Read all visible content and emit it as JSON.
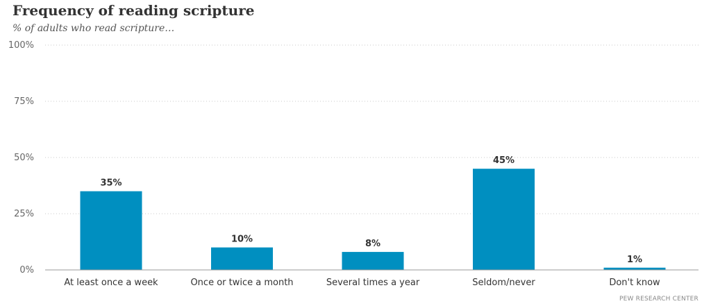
{
  "chart_data": {
    "type": "bar",
    "title": "Frequency of reading scripture",
    "subtitle": "% of adults who read scripture…",
    "categories": [
      "At least once a week",
      "Once or twice a month",
      "Several times a year",
      "Seldom/never",
      "Don't know"
    ],
    "values": [
      35,
      10,
      8,
      45,
      1
    ],
    "value_labels": [
      "35%",
      "10%",
      "8%",
      "45%",
      "1%"
    ],
    "ylim": [
      0,
      100
    ],
    "yticks": [
      0,
      25,
      50,
      75,
      100
    ],
    "ytick_labels": [
      "0%",
      "25%",
      "50%",
      "75%",
      "100%"
    ],
    "xlabel": "",
    "ylabel": "",
    "grid": true,
    "legend": "none",
    "bar_color": "#008fc0"
  },
  "source": "PEW RESEARCH CENTER"
}
